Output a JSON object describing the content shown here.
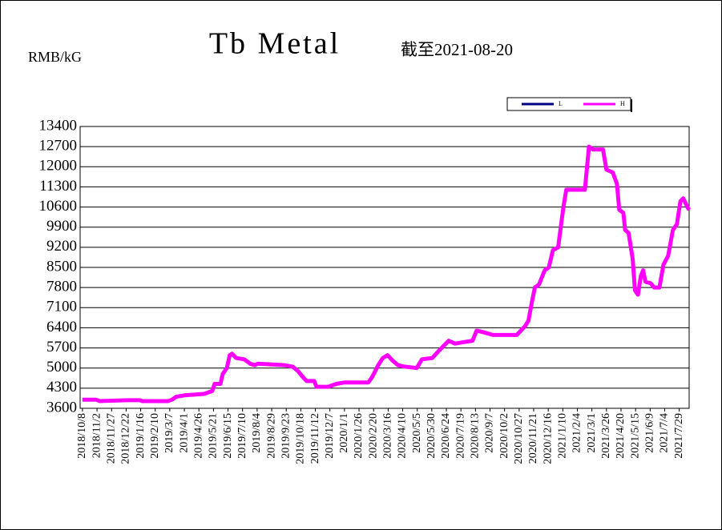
{
  "chart_data": {
    "type": "line",
    "title": "Tb Metal",
    "subtitle": "截至2021-08-20",
    "y_label": "RMB/kG",
    "legend": "top-right",
    "grid": true,
    "ylim": [
      3600,
      13400
    ],
    "yticks": [
      3600,
      4300,
      5000,
      5700,
      6400,
      7100,
      7800,
      8500,
      9200,
      9900,
      10600,
      11300,
      12000,
      12700,
      13400
    ],
    "xlim": [
      "2018/10/4",
      "2021/8/15"
    ],
    "xticks": [
      "2018/10/8",
      "2018/11/2",
      "2018/11/27",
      "2018/12/22",
      "2019/1/16",
      "2019/2/10",
      "2019/3/7",
      "2019/4/1",
      "2019/4/26",
      "2019/5/21",
      "2019/6/15",
      "2019/7/10",
      "2019/8/4",
      "2019/8/29",
      "2019/9/23",
      "2019/10/18",
      "2019/11/12",
      "2019/12/7",
      "2020/1/1",
      "2020/1/26",
      "2020/2/20",
      "2020/3/16",
      "2020/4/10",
      "2020/5/5",
      "2020/5/30",
      "2020/6/24",
      "2020/7/19",
      "2020/8/13",
      "2020/9/7",
      "2020/10/2",
      "2020/10/27",
      "2020/11/21",
      "2020/12/16",
      "2021/1/10",
      "2021/2/4",
      "2021/3/1",
      "2021/3/26",
      "2021/4/20",
      "2021/5/15",
      "2021/6/9",
      "2021/7/4",
      "2021/7/29"
    ],
    "x": [
      "2018/10/8",
      "2018/10/31",
      "2018/11/7",
      "2018/12/25",
      "2019/1/15",
      "2019/1/19",
      "2019/3/4",
      "2019/3/11",
      "2019/3/18",
      "2019/4/1",
      "2019/5/5",
      "2019/5/19",
      "2019/5/23",
      "2019/6/2",
      "2019/6/6",
      "2019/6/13",
      "2019/6/18",
      "2019/6/22",
      "2019/6/29",
      "2019/7/13",
      "2019/7/23",
      "2019/7/31",
      "2019/8/5",
      "2019/9/20",
      "2019/10/4",
      "2019/10/13",
      "2019/10/21",
      "2019/10/28",
      "2019/11/10",
      "2019/11/14",
      "2019/12/4",
      "2019/12/18",
      "2020/1/1",
      "2020/2/11",
      "2020/2/18",
      "2020/2/28",
      "2020/3/7",
      "2020/3/15",
      "2020/3/24",
      "2020/4/2",
      "2020/4/13",
      "2020/5/4",
      "2020/5/13",
      "2020/5/31",
      "2020/6/11",
      "2020/6/28",
      "2020/7/9",
      "2020/7/23",
      "2020/8/8",
      "2020/8/15",
      "2020/8/26",
      "2020/9/12",
      "2020/10/23",
      "2020/11/6",
      "2020/11/12",
      "2020/11/17",
      "2020/11/23",
      "2020/11/30",
      "2020/12/10",
      "2020/12/17",
      "2020/12/24",
      "2021/1/2",
      "2021/1/11",
      "2021/1/16",
      "2021/2/17",
      "2021/2/24",
      "2021/3/3",
      "2021/3/20",
      "2021/3/26",
      "2021/4/6",
      "2021/4/13",
      "2021/4/17",
      "2021/4/24",
      "2021/4/27",
      "2021/5/3",
      "2021/5/10",
      "2021/5/14",
      "2021/5/19",
      "2021/5/24",
      "2021/5/28",
      "2021/6/1",
      "2021/6/10",
      "2021/6/16",
      "2021/6/25",
      "2021/7/2",
      "2021/7/10",
      "2021/7/18",
      "2021/7/25",
      "2021/7/31",
      "2021/8/5",
      "2021/8/12",
      "2021/8/15"
    ],
    "series": [
      {
        "name": "L",
        "color": "#000080",
        "values": [
          3900,
          3900,
          3850,
          3880,
          3880,
          3850,
          3850,
          3900,
          4000,
          4050,
          4100,
          4200,
          4450,
          4450,
          4800,
          5000,
          5450,
          5500,
          5350,
          5300,
          5150,
          5100,
          5150,
          5100,
          5050,
          4900,
          4700,
          4550,
          4550,
          4350,
          4350,
          4450,
          4500,
          4500,
          4700,
          5100,
          5350,
          5450,
          5250,
          5100,
          5050,
          5000,
          5300,
          5350,
          5600,
          5950,
          5850,
          5900,
          5950,
          6300,
          6250,
          6150,
          6150,
          6450,
          6650,
          7200,
          7800,
          7900,
          8400,
          8500,
          9100,
          9200,
          10600,
          11200,
          11200,
          12700,
          12600,
          12600,
          11900,
          11800,
          11400,
          10500,
          10400,
          9800,
          9700,
          8800,
          7700,
          7550,
          8200,
          8400,
          8000,
          7950,
          7800,
          7800,
          8600,
          8900,
          9800,
          10000,
          10800,
          10900,
          10600,
          10500
        ]
      },
      {
        "name": "H",
        "color": "#ff00ff",
        "values": [
          3900,
          3900,
          3850,
          3880,
          3880,
          3850,
          3850,
          3900,
          4000,
          4050,
          4100,
          4200,
          4450,
          4450,
          4800,
          5000,
          5450,
          5500,
          5350,
          5300,
          5150,
          5100,
          5150,
          5100,
          5050,
          4900,
          4700,
          4550,
          4550,
          4350,
          4350,
          4450,
          4500,
          4500,
          4700,
          5100,
          5350,
          5450,
          5250,
          5100,
          5050,
          5000,
          5300,
          5350,
          5600,
          5950,
          5850,
          5900,
          5950,
          6300,
          6250,
          6150,
          6150,
          6450,
          6650,
          7200,
          7800,
          7900,
          8400,
          8500,
          9100,
          9200,
          10600,
          11200,
          11200,
          12700,
          12600,
          12600,
          11900,
          11800,
          11400,
          10500,
          10400,
          9800,
          9700,
          8800,
          7700,
          7550,
          8200,
          8400,
          8000,
          7950,
          7800,
          7800,
          8600,
          8900,
          9800,
          10000,
          10800,
          10900,
          10600,
          10500
        ]
      }
    ]
  }
}
